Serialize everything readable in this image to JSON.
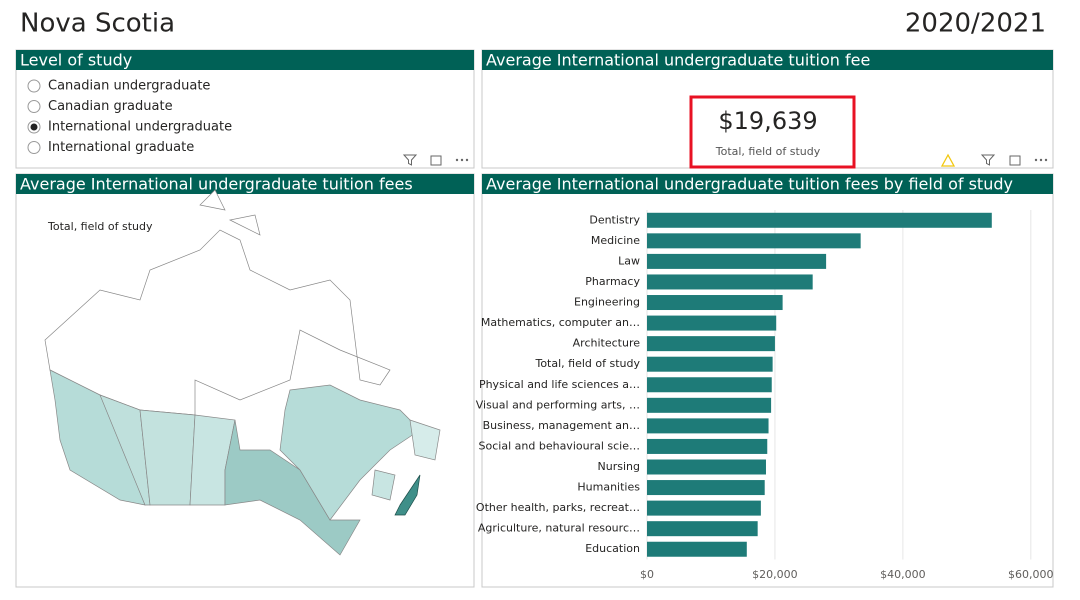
{
  "header": {
    "title": "Nova Scotia",
    "period": "2020/2021"
  },
  "level_panel": {
    "title": "Level of study",
    "options": [
      "Canadian undergraduate",
      "Canadian graduate",
      "International undergraduate",
      "International graduate"
    ],
    "selected": 2
  },
  "kpi_panel": {
    "title": "Average International undergraduate tuition fee",
    "value": "$19,639",
    "label": "Total, field of study"
  },
  "map_panel": {
    "title": "Average International undergraduate tuition fees",
    "label": "Total, field of study"
  },
  "chart_data": {
    "type": "hbar",
    "title": "Average International undergraduate tuition fees by field of study",
    "categories": [
      "Dentistry",
      "Medicine",
      "Law",
      "Pharmacy",
      "Engineering",
      "Mathematics, computer an…",
      "Architecture",
      "Total, field of study",
      "Physical and life sciences a…",
      "Visual and performing arts, …",
      "Business, management an…",
      "Social and behavioural scie…",
      "Nursing",
      "Humanities",
      "Other health, parks, recreat…",
      "Agriculture, natural resourc…",
      "Education"
    ],
    "values": [
      53900,
      33400,
      28000,
      25900,
      21200,
      20200,
      20000,
      19639,
      19500,
      19400,
      19000,
      18800,
      18600,
      18400,
      17800,
      17300,
      15600
    ],
    "color": "#1e7b78",
    "xlim": [
      0,
      63000
    ],
    "xticks": [
      {
        "value": 0,
        "label": "$0"
      },
      {
        "value": 20000,
        "label": "$20,000"
      },
      {
        "value": 40000,
        "label": "$40,000"
      },
      {
        "value": 60000,
        "label": "$60,000"
      }
    ],
    "grid": true
  }
}
